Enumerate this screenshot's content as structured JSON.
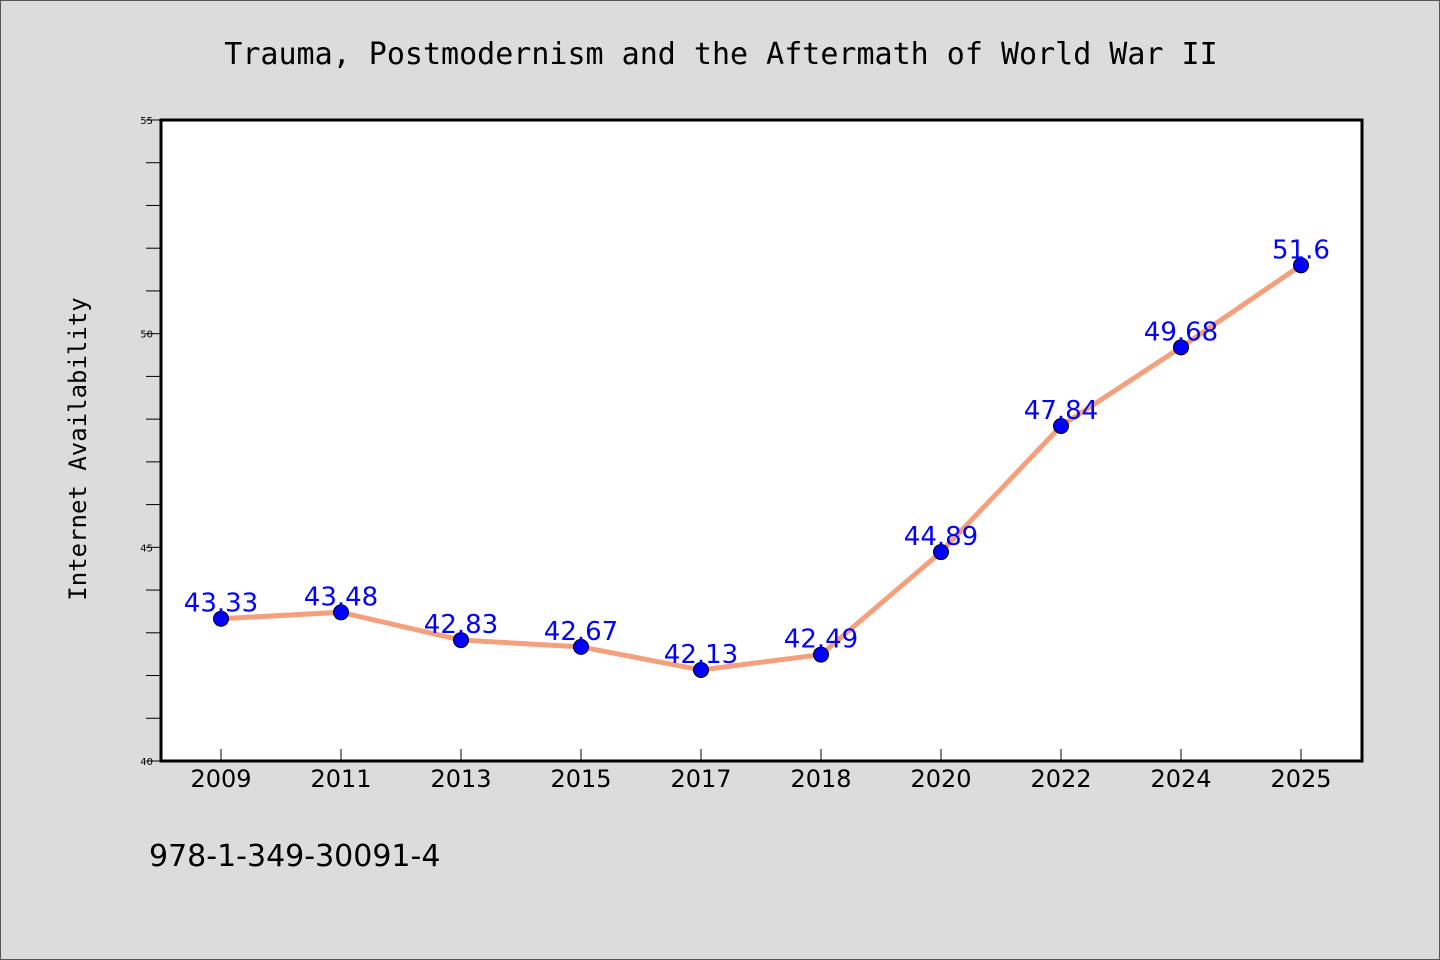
{
  "footer": {
    "isbn": "978-1-349-30091-4"
  },
  "colors": {
    "background": "#dcdcdc",
    "plot_background": "#ffffff",
    "line": "#f4a07c",
    "marker": "#0000ff",
    "data_label": "#0000ff"
  },
  "chart_data": {
    "type": "line",
    "title": "Trauma, Postmodernism and the Aftermath of World War II",
    "xlabel": "",
    "ylabel": "Internet Availability",
    "categories": [
      "2009",
      "2011",
      "2013",
      "2015",
      "2017",
      "2018",
      "2020",
      "2022",
      "2024",
      "2025"
    ],
    "series": [
      {
        "values": [
          43.33,
          43.48,
          42.83,
          42.67,
          42.13,
          42.49,
          44.89,
          47.84,
          49.68,
          51.6
        ]
      }
    ],
    "data_labels": [
      "43.33",
      "43.48",
      "42.83",
      "42.67",
      "42.13",
      "42.49",
      "44.89",
      "47.84",
      "49.68",
      "51.6"
    ],
    "ylim": [
      40,
      55
    ],
    "y_ticks": [
      "40",
      "45",
      "50",
      "55"
    ],
    "grid": false,
    "legend": "none"
  }
}
